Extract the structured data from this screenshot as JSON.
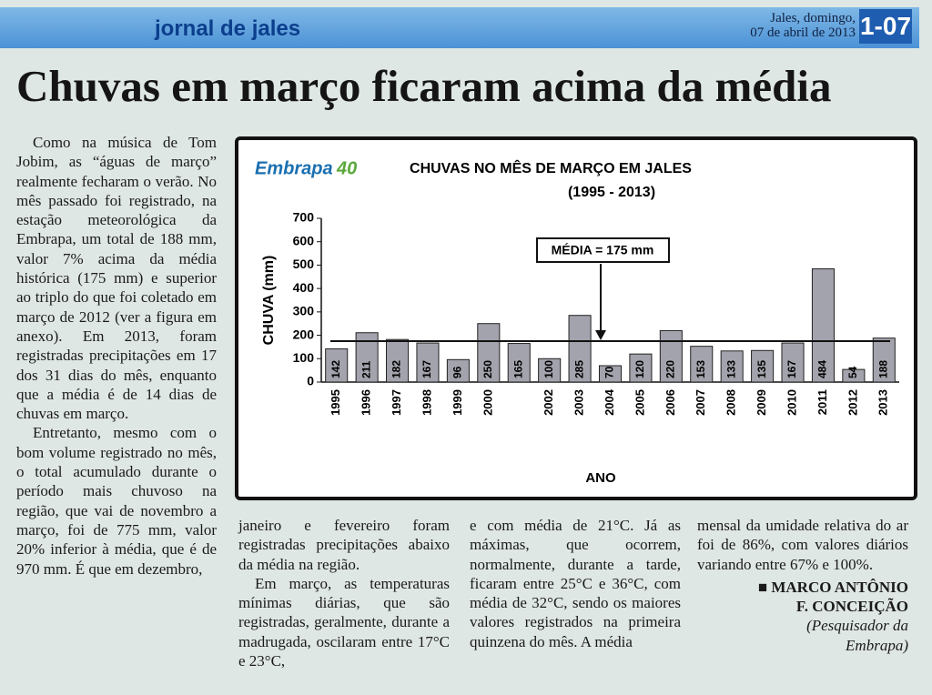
{
  "header": {
    "paper": "jornal de jales",
    "date_line1": "Jales, domingo,",
    "date_line2": "07 de abril de 2013",
    "page": "1-07"
  },
  "headline": "Chuvas em março ficaram acima da média",
  "column1": [
    "Como na música de Tom Jobim, as “águas de março” realmente fecharam o verão. No mês passado foi registrado, na estação meteorológica da Embrapa, um total de 188 mm, valor 7% acima da média histórica (175 mm) e superior ao triplo do que foi coletado em março de 2012 (ver a figura em anexo). Em 2013, foram registradas precipitações em 17 dos 31 dias do mês, enquanto que a média é de 14 dias de chuvas em março.",
    "Entretanto, mesmo com o bom volume registrado no mês, o total acumulado durante o período mais chuvoso na região, que vai de novembro a março, foi de 775 mm, valor 20% inferior à média, que é de 970 mm. É que em dezembro,"
  ],
  "column2": [
    "janeiro e fevereiro foram registradas precipitações abaixo da média na região.",
    "Em março, as temperaturas mínimas diárias, que são registradas, geralmente, durante a madrugada, oscilaram entre 17°C e 23°C,"
  ],
  "column3": [
    "e com média de 21°C. Já as máximas, que ocorrem, normalmente, durante a tarde, ficaram entre 25°C e 36°C, com média de 32°C, sendo os maiores valores registrados na primeira quinzena do mês. A média"
  ],
  "column4": [
    "mensal da umidade relativa do ar foi de 86%, com valores diários variando entre 67% e 100%."
  ],
  "byline": {
    "name1": "MARCO ANTÔNIO",
    "name2": "F. CONCEIÇÃO",
    "role1": "(Pesquisador da",
    "role2": "Embrapa)"
  },
  "chart_data": {
    "type": "bar",
    "logo": "Embrapa",
    "logo_badge": "40",
    "title": "CHUVAS NO MÊS DE MARÇO EM JALES",
    "subtitle": "(1995 - 2013)",
    "y_label": "CHUVA (mm)",
    "x_label": "ANO",
    "categories": [
      "1995",
      "1996",
      "1997",
      "1998",
      "1999",
      "2000",
      null,
      "2002",
      "2003",
      "2004",
      "2005",
      "2006",
      "2007",
      "2008",
      "2009",
      "2010",
      "2011",
      "2012",
      "2013"
    ],
    "values": [
      142,
      211,
      182,
      167,
      96,
      250,
      165,
      100,
      285,
      70,
      120,
      220,
      153,
      133,
      135,
      167,
      484,
      54,
      188
    ],
    "color": "#a3a3ad",
    "ylim": [
      0,
      700
    ],
    "yticks": [
      0,
      100,
      200,
      300,
      400,
      500,
      600,
      700
    ],
    "reference_line": 175,
    "annotation": "MÉDIA = 175 mm"
  }
}
